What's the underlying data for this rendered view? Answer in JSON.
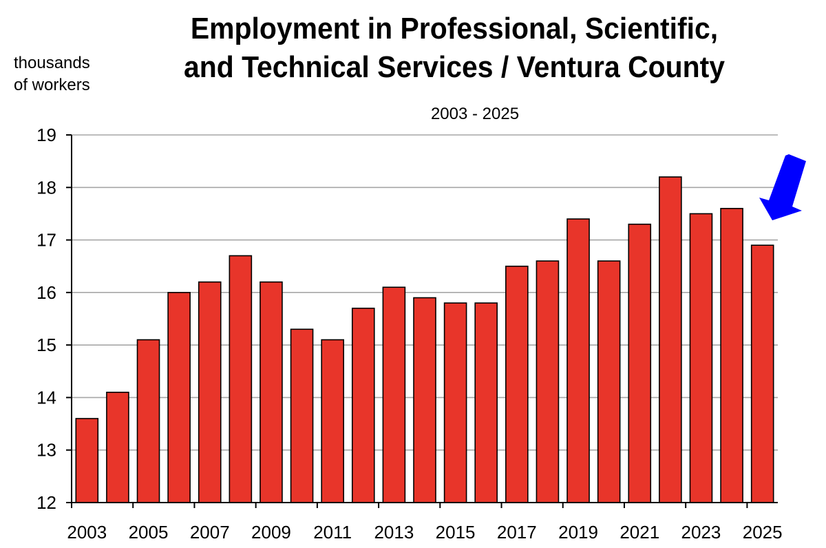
{
  "chart_data": {
    "type": "bar",
    "title_line1": "Employment in Professional, Scientific,",
    "title_line2": "and Technical Services / Ventura County",
    "subtitle": "2003 - 2025",
    "ylabel_line1": "thousands",
    "ylabel_line2": "of workers",
    "xlabel": "",
    "ylim": [
      12,
      19
    ],
    "yticks": [
      12,
      13,
      14,
      15,
      16,
      17,
      18,
      19
    ],
    "grid": true,
    "bar_color": "#e8352a",
    "arrow_color": "#0000ff",
    "categories": [
      "2003",
      "2004",
      "2005",
      "2006",
      "2007",
      "2008",
      "2009",
      "2010",
      "2011",
      "2012",
      "2013",
      "2014",
      "2015",
      "2016",
      "2017",
      "2018",
      "2019",
      "2020",
      "2021",
      "2022",
      "2023",
      "2024",
      "2025"
    ],
    "x_tick_labels": [
      "2003",
      "2005",
      "2007",
      "2009",
      "2011",
      "2013",
      "2015",
      "2017",
      "2019",
      "2021",
      "2023",
      "2025"
    ],
    "values": [
      13.6,
      14.1,
      15.1,
      16.0,
      16.2,
      16.7,
      16.2,
      15.3,
      15.1,
      15.7,
      16.1,
      15.9,
      15.8,
      15.8,
      16.5,
      16.6,
      17.4,
      16.6,
      17.3,
      18.2,
      17.5,
      17.6,
      16.9
    ]
  }
}
